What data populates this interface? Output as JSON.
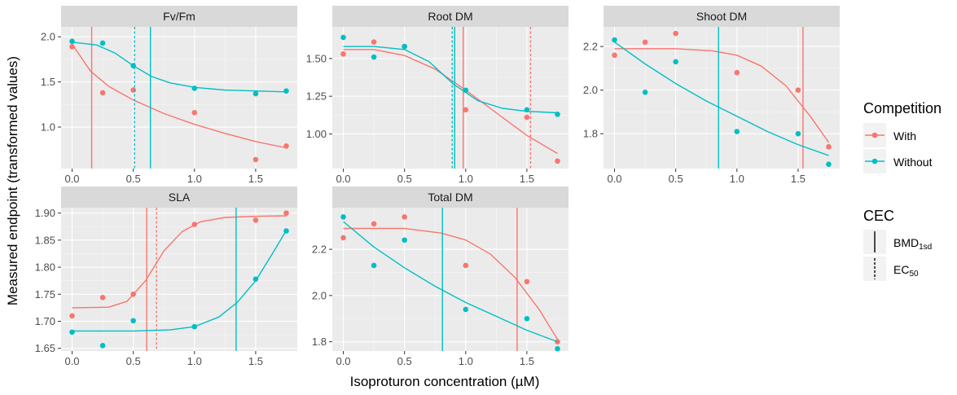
{
  "chart_data": {
    "type": "scatter",
    "xlabel": "Isoproturon concentration (µM)",
    "ylabel": "Measured endpoint (transformed values)",
    "colors": {
      "With": "#F8766D",
      "Without": "#00BFC4"
    },
    "legend_competition": {
      "title": "Competition",
      "items": [
        "With",
        "Without"
      ]
    },
    "legend_cec": {
      "title": "CEC",
      "items": [
        {
          "main": "BMD",
          "sub": "1sd",
          "linetype": "solid"
        },
        {
          "main": "EC",
          "sub": "50",
          "linetype": "dashed"
        }
      ]
    },
    "x_ticks": [
      "0.0",
      "0.5",
      "1.0",
      "1.5"
    ],
    "x_tick_values": [
      0,
      0.5,
      1.0,
      1.5
    ],
    "xlim": [
      -0.09,
      1.84
    ],
    "panels": [
      {
        "title": "Fv/Fm",
        "ylim": [
          0.54,
          2.11
        ],
        "y_ticks": [
          "1.0",
          "1.5",
          "2.0"
        ],
        "y_tick_values": [
          1.0,
          1.5,
          2.0
        ],
        "series": [
          {
            "name": "With",
            "points": [
              [
                0,
                1.89
              ],
              [
                0.25,
                1.38
              ],
              [
                0.5,
                1.41
              ],
              [
                1.0,
                1.16
              ],
              [
                1.5,
                0.64
              ],
              [
                1.75,
                0.79
              ]
            ],
            "curve": [
              [
                0,
                1.92
              ],
              [
                0.15,
                1.62
              ],
              [
                0.3,
                1.45
              ],
              [
                0.5,
                1.3
              ],
              [
                0.75,
                1.15
              ],
              [
                1.0,
                1.03
              ],
              [
                1.25,
                0.93
              ],
              [
                1.5,
                0.84
              ],
              [
                1.75,
                0.77
              ]
            ],
            "bmd": 0.16,
            "ec50": null
          },
          {
            "name": "Without",
            "points": [
              [
                0,
                1.95
              ],
              [
                0.25,
                1.93
              ],
              [
                0.5,
                1.68
              ],
              [
                1.0,
                1.43
              ],
              [
                1.5,
                1.37
              ],
              [
                1.75,
                1.4
              ]
            ],
            "curve": [
              [
                0,
                1.94
              ],
              [
                0.2,
                1.91
              ],
              [
                0.35,
                1.82
              ],
              [
                0.5,
                1.68
              ],
              [
                0.65,
                1.56
              ],
              [
                0.8,
                1.49
              ],
              [
                1.0,
                1.44
              ],
              [
                1.25,
                1.41
              ],
              [
                1.5,
                1.4
              ],
              [
                1.75,
                1.39
              ]
            ],
            "bmd": 0.64,
            "ec50": 0.51
          }
        ]
      },
      {
        "title": "Root DM",
        "ylim": [
          0.77,
          1.71
        ],
        "y_ticks": [
          "1.00",
          "1.25",
          "1.50"
        ],
        "y_tick_values": [
          1.0,
          1.25,
          1.5
        ],
        "series": [
          {
            "name": "With",
            "points": [
              [
                0,
                1.53
              ],
              [
                0.25,
                1.61
              ],
              [
                0.5,
                1.58
              ],
              [
                1.0,
                1.16
              ],
              [
                1.5,
                1.11
              ],
              [
                1.75,
                0.82
              ]
            ],
            "curve": [
              [
                0,
                1.56
              ],
              [
                0.25,
                1.56
              ],
              [
                0.5,
                1.52
              ],
              [
                0.75,
                1.43
              ],
              [
                1.0,
                1.29
              ],
              [
                1.25,
                1.14
              ],
              [
                1.5,
                0.99
              ],
              [
                1.75,
                0.87
              ]
            ],
            "bmd": 0.98,
            "ec50": 1.53
          },
          {
            "name": "Without",
            "points": [
              [
                0,
                1.64
              ],
              [
                0.25,
                1.51
              ],
              [
                0.5,
                1.58
              ],
              [
                1.0,
                1.29
              ],
              [
                1.5,
                1.16
              ],
              [
                1.75,
                1.13
              ]
            ],
            "curve": [
              [
                0,
                1.58
              ],
              [
                0.25,
                1.58
              ],
              [
                0.5,
                1.56
              ],
              [
                0.7,
                1.48
              ],
              [
                0.9,
                1.33
              ],
              [
                1.1,
                1.22
              ],
              [
                1.3,
                1.17
              ],
              [
                1.5,
                1.15
              ],
              [
                1.75,
                1.14
              ]
            ],
            "bmd": 0.91,
            "ec50": 0.89
          }
        ]
      },
      {
        "title": "Shoot DM",
        "ylim": [
          1.64,
          2.29
        ],
        "y_ticks": [
          "1.8",
          "2.0",
          "2.2"
        ],
        "y_tick_values": [
          1.8,
          2.0,
          2.2
        ],
        "series": [
          {
            "name": "With",
            "points": [
              [
                0,
                2.16
              ],
              [
                0.25,
                2.22
              ],
              [
                0.5,
                2.26
              ],
              [
                1.0,
                2.08
              ],
              [
                1.5,
                2.0
              ],
              [
                1.75,
                1.74
              ]
            ],
            "curve": [
              [
                0,
                2.19
              ],
              [
                0.5,
                2.19
              ],
              [
                0.8,
                2.18
              ],
              [
                1.0,
                2.16
              ],
              [
                1.2,
                2.11
              ],
              [
                1.4,
                2.02
              ],
              [
                1.6,
                1.88
              ],
              [
                1.75,
                1.76
              ]
            ],
            "bmd": 1.54,
            "ec50": null
          },
          {
            "name": "Without",
            "points": [
              [
                0,
                2.23
              ],
              [
                0.25,
                1.99
              ],
              [
                0.5,
                2.13
              ],
              [
                1.0,
                1.81
              ],
              [
                1.5,
                1.8
              ],
              [
                1.75,
                1.66
              ]
            ],
            "curve": [
              [
                0,
                2.22
              ],
              [
                0.25,
                2.12
              ],
              [
                0.5,
                2.03
              ],
              [
                0.75,
                1.95
              ],
              [
                1.0,
                1.88
              ],
              [
                1.25,
                1.81
              ],
              [
                1.5,
                1.75
              ],
              [
                1.75,
                1.7
              ]
            ],
            "bmd": 0.85,
            "ec50": null
          }
        ]
      },
      {
        "title": "SLA",
        "ylim": [
          1.645,
          1.91
        ],
        "y_ticks": [
          "1.65",
          "1.70",
          "1.75",
          "1.80",
          "1.85",
          "1.90"
        ],
        "y_tick_values": [
          1.65,
          1.7,
          1.75,
          1.8,
          1.85,
          1.9
        ],
        "series": [
          {
            "name": "With",
            "points": [
              [
                0,
                1.71
              ],
              [
                0.25,
                1.744
              ],
              [
                0.5,
                1.75
              ],
              [
                1.0,
                1.879
              ],
              [
                1.5,
                1.887
              ],
              [
                1.75,
                1.9
              ]
            ],
            "curve": [
              [
                0,
                1.725
              ],
              [
                0.3,
                1.726
              ],
              [
                0.45,
                1.737
              ],
              [
                0.6,
                1.775
              ],
              [
                0.75,
                1.83
              ],
              [
                0.9,
                1.866
              ],
              [
                1.05,
                1.884
              ],
              [
                1.25,
                1.892
              ],
              [
                1.5,
                1.894
              ],
              [
                1.75,
                1.895
              ]
            ],
            "bmd": 0.61,
            "ec50": 0.69
          },
          {
            "name": "Without",
            "points": [
              [
                0,
                1.68
              ],
              [
                0.25,
                1.655
              ],
              [
                0.5,
                1.701
              ],
              [
                1.0,
                1.69
              ],
              [
                1.5,
                1.778
              ],
              [
                1.75,
                1.867
              ]
            ],
            "curve": [
              [
                0,
                1.682
              ],
              [
                0.5,
                1.682
              ],
              [
                0.8,
                1.684
              ],
              [
                1.0,
                1.69
              ],
              [
                1.2,
                1.708
              ],
              [
                1.35,
                1.735
              ],
              [
                1.5,
                1.775
              ],
              [
                1.65,
                1.83
              ],
              [
                1.75,
                1.868
              ]
            ],
            "bmd": 1.34,
            "ec50": null
          }
        ]
      },
      {
        "title": "Total DM",
        "ylim": [
          1.76,
          2.38
        ],
        "y_ticks": [
          "1.8",
          "2.0",
          "2.2"
        ],
        "y_tick_values": [
          1.8,
          2.0,
          2.2
        ],
        "series": [
          {
            "name": "With",
            "points": [
              [
                0,
                2.25
              ],
              [
                0.25,
                2.31
              ],
              [
                0.5,
                2.34
              ],
              [
                1.0,
                2.13
              ],
              [
                1.5,
                2.06
              ],
              [
                1.75,
                1.8
              ]
            ],
            "curve": [
              [
                0,
                2.29
              ],
              [
                0.5,
                2.29
              ],
              [
                0.8,
                2.27
              ],
              [
                1.0,
                2.24
              ],
              [
                1.2,
                2.18
              ],
              [
                1.4,
                2.08
              ],
              [
                1.6,
                1.94
              ],
              [
                1.75,
                1.81
              ]
            ],
            "bmd": 1.42,
            "ec50": null
          },
          {
            "name": "Without",
            "points": [
              [
                0,
                2.34
              ],
              [
                0.25,
                2.13
              ],
              [
                0.5,
                2.24
              ],
              [
                1.0,
                1.94
              ],
              [
                1.5,
                1.9
              ],
              [
                1.75,
                1.77
              ]
            ],
            "curve": [
              [
                0,
                2.32
              ],
              [
                0.25,
                2.21
              ],
              [
                0.5,
                2.12
              ],
              [
                0.75,
                2.04
              ],
              [
                1.0,
                1.97
              ],
              [
                1.25,
                1.91
              ],
              [
                1.5,
                1.85
              ],
              [
                1.75,
                1.8
              ]
            ],
            "bmd": 0.81,
            "ec50": null
          }
        ]
      }
    ]
  }
}
